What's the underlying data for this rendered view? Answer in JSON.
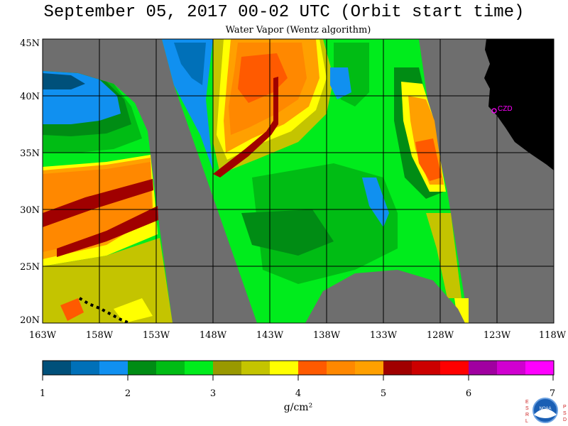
{
  "header": {
    "title": "September 05, 2017  00-02 UTC  (Orbit start time)",
    "subtitle": "Water Vapor (Wentz algorithm)"
  },
  "map": {
    "lat_labels": [
      "45N",
      "40N",
      "35N",
      "30N",
      "25N",
      "20N"
    ],
    "lon_labels": [
      "163W",
      "158W",
      "153W",
      "148W",
      "143W",
      "138W",
      "133W",
      "128W",
      "123W",
      "118W"
    ],
    "station_label": "CZD",
    "colors": {
      "no_data": "#6e6e6e",
      "land": "#000000",
      "station": "#ff00ff"
    }
  },
  "colorbar": {
    "colors": [
      "#00507a",
      "#0070b8",
      "#1090f0",
      "#008c14",
      "#00bc14",
      "#00ec1c",
      "#999900",
      "#c4c400",
      "#ffff00",
      "#ff5a00",
      "#ff8800",
      "#ffa000",
      "#a00000",
      "#cc0000",
      "#ff0000",
      "#a000a0",
      "#d000d0",
      "#ff00ff"
    ],
    "tick_labels": [
      "1",
      "2",
      "3",
      "4",
      "5",
      "6",
      "7"
    ],
    "unit_label": "g/cm²"
  },
  "logos": {
    "left_letters": "ESRL",
    "right_letters": "PSD",
    "center_text": "NOAA"
  }
}
